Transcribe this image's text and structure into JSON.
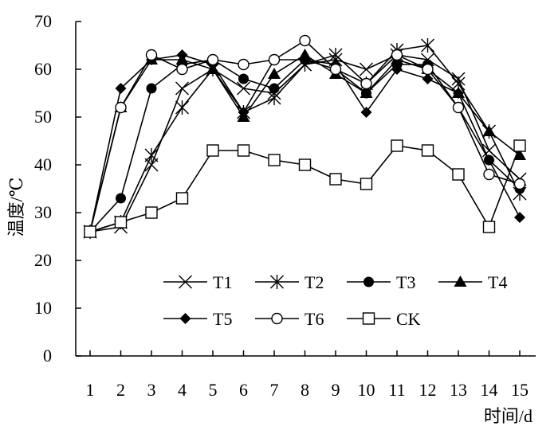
{
  "chart_data": {
    "type": "line",
    "x": [
      1,
      2,
      3,
      4,
      5,
      6,
      7,
      8,
      9,
      10,
      11,
      12,
      13,
      14,
      15
    ],
    "xlabel": "时间/d",
    "ylabel": "温度/℃",
    "ylim": [
      0,
      70
    ],
    "yticks": [
      0,
      10,
      20,
      30,
      40,
      50,
      60,
      70
    ],
    "grid": false,
    "legend": "bottom-center, inside plot",
    "series": [
      {
        "name": "T1",
        "marker": "x",
        "values": [
          26,
          27,
          40,
          56,
          60,
          56,
          55,
          61,
          62,
          60,
          63,
          62,
          58,
          43,
          37
        ]
      },
      {
        "name": "T2",
        "marker": "star",
        "values": [
          26,
          28,
          42,
          52,
          60,
          51,
          54,
          61,
          63,
          57,
          64,
          65,
          57,
          47,
          34
        ]
      },
      {
        "name": "T3",
        "marker": "circle-filled",
        "values": [
          26,
          33,
          56,
          61,
          62,
          58,
          56,
          62,
          60,
          55,
          61,
          61,
          52,
          41,
          35
        ]
      },
      {
        "name": "T4",
        "marker": "triangle-filled",
        "values": [
          26,
          52,
          62,
          62,
          60,
          50,
          59,
          63,
          59,
          55,
          62,
          60,
          55,
          47,
          42
        ]
      },
      {
        "name": "T5",
        "marker": "diamond-filled",
        "values": [
          26,
          56,
          62,
          63,
          61,
          51,
          62,
          62,
          61,
          51,
          60,
          58,
          55,
          41,
          29
        ]
      },
      {
        "name": "T6",
        "marker": "circle-open",
        "values": [
          26,
          52,
          63,
          60,
          62,
          61,
          62,
          66,
          60,
          57,
          63,
          60,
          52,
          38,
          36
        ]
      },
      {
        "name": "CK",
        "marker": "square-open",
        "values": [
          26,
          28,
          30,
          33,
          43,
          43,
          41,
          40,
          37,
          36,
          44,
          43,
          38,
          27,
          44
        ]
      }
    ]
  }
}
